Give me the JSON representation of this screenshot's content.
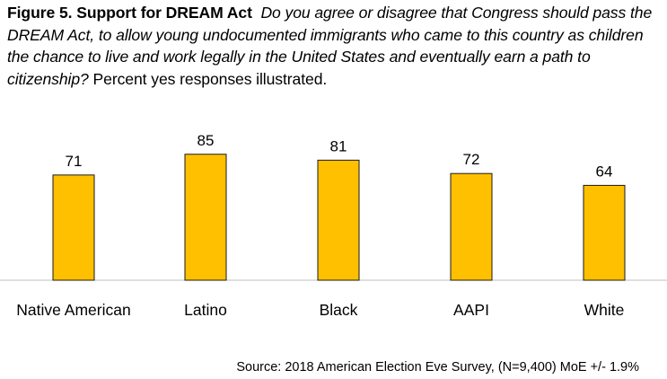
{
  "heading": {
    "title": "Figure 5. Support for DREAM Act",
    "question": "Do you agree or disagree that Congress should pass the DREAM Act, to allow young undocumented immigrants who came to this country as children the chance to live and work legally in the United States and eventually earn a path to citizenship?",
    "note": "Percent yes responses illustrated."
  },
  "chart_data": {
    "type": "bar",
    "categories": [
      "Native American",
      "Latino",
      "Black",
      "AAPI",
      "White"
    ],
    "values": [
      71,
      85,
      81,
      72,
      64
    ],
    "title": "Figure 5. Support for DREAM Act",
    "xlabel": "",
    "ylabel": "",
    "ylim": [
      0,
      100
    ],
    "grid": false,
    "legend": "none",
    "bar_color": "#FFC000",
    "bar_edge_color": "#1a1a1a"
  },
  "source": "Source: 2018 American Election Eve Survey, (N=9,400) MoE +/- 1.9%"
}
